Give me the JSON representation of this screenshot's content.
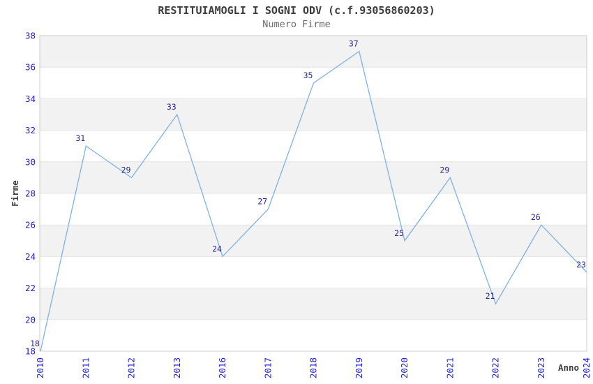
{
  "header": {
    "title": "RESTITUIAMOGLI I SOGNI ODV (c.f.93056860203)",
    "subtitle": "Numero Firme"
  },
  "chart_data": {
    "type": "line",
    "title": "RESTITUIAMOGLI I SOGNI ODV (c.f.93056860203)",
    "subtitle": "Numero Firme",
    "categories": [
      "2010",
      "2011",
      "2012",
      "2013",
      "2016",
      "2017",
      "2018",
      "2019",
      "2020",
      "2021",
      "2022",
      "2023",
      "2024"
    ],
    "values": [
      18,
      31,
      29,
      33,
      24,
      27,
      35,
      37,
      25,
      29,
      21,
      26,
      23
    ],
    "xlabel": "Anno",
    "ylabel": "Firme",
    "ylim": [
      18,
      38
    ],
    "ytick_step": 2,
    "grid": "horizontal-alternating-bands",
    "legend": "none",
    "markers": "none",
    "data_labels": "above-left",
    "colors": {
      "line": "#7fb1e8",
      "data_label": "#26268f",
      "tick_label": "#2323cb",
      "band_gray": "#f2f2f2",
      "band_white": "#ffffff",
      "grid_line": "#e4e4e4",
      "plot_border": "#cccccc",
      "title": "#3c3c3c",
      "subtitle": "#6a6a6a",
      "axis_label": "#3c3c3c",
      "background": "#ffffff"
    }
  }
}
